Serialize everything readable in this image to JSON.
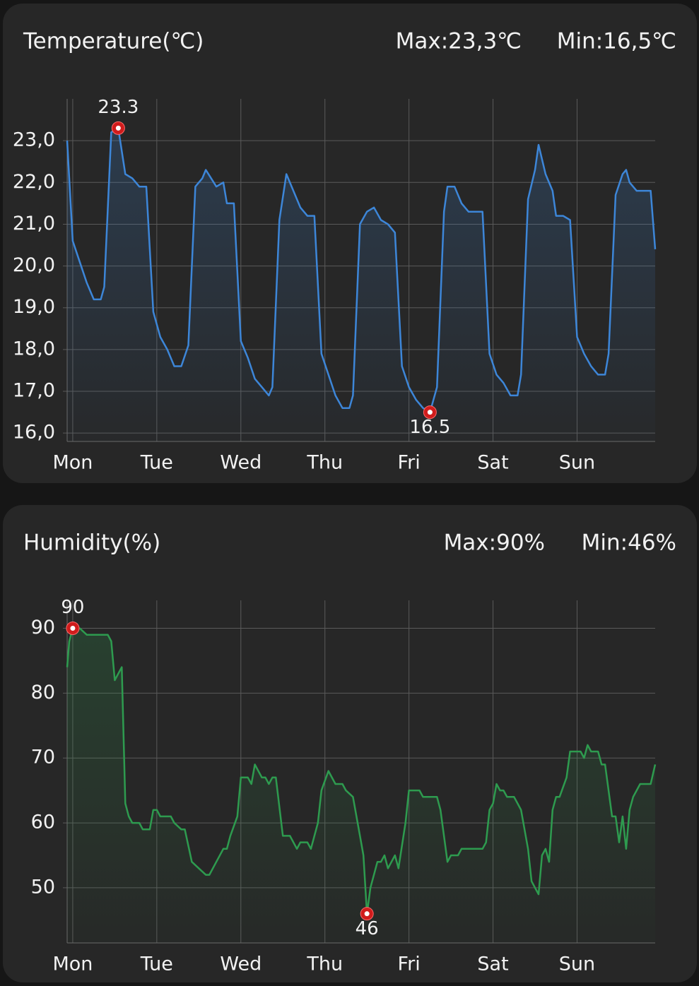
{
  "chart_data": [
    {
      "type": "line",
      "title": "Temperature(℃)",
      "max_label": "Max:23,3℃",
      "min_label": "Min:16,5℃",
      "color": "#3d86d8",
      "grid": true,
      "xlim": [
        -1.6,
        166.3
      ],
      "ylim": [
        15.8,
        24.0
      ],
      "xticks": [
        {
          "value": 0,
          "label": "Mon"
        },
        {
          "value": 24,
          "label": "Tue"
        },
        {
          "value": 48,
          "label": "Wed"
        },
        {
          "value": 72,
          "label": "Thu"
        },
        {
          "value": 96,
          "label": "Fri"
        },
        {
          "value": 120,
          "label": "Sat"
        },
        {
          "value": 144,
          "label": "Sun"
        }
      ],
      "yticks": [
        {
          "value": 16,
          "label": "16,0"
        },
        {
          "value": 17,
          "label": "17,0"
        },
        {
          "value": 18,
          "label": "18,0"
        },
        {
          "value": 19,
          "label": "19,0"
        },
        {
          "value": 20,
          "label": "20,0"
        },
        {
          "value": 21,
          "label": "21,0"
        },
        {
          "value": 22,
          "label": "22,0"
        },
        {
          "value": 23,
          "label": "23,0"
        }
      ],
      "x": [
        -1.6,
        0,
        2,
        4,
        6,
        8,
        9,
        11,
        13,
        15,
        17,
        19,
        21,
        23,
        25,
        27,
        29,
        31,
        33,
        35,
        37,
        38,
        41,
        43,
        44,
        46,
        48,
        50,
        52,
        54,
        56,
        57,
        59,
        61,
        63,
        65,
        67,
        69,
        71,
        73,
        75,
        77,
        79,
        80,
        82,
        84,
        86,
        88,
        90,
        92,
        94,
        96,
        98,
        100,
        102,
        104,
        106,
        107,
        109,
        111,
        113,
        115,
        117,
        119,
        121,
        123,
        125,
        127,
        128,
        130,
        132,
        133,
        135,
        137,
        138,
        140,
        142,
        144,
        146,
        148,
        150,
        152,
        153,
        155,
        157,
        158,
        159,
        161,
        163,
        165,
        166.3
      ],
      "values": [
        23.0,
        20.6,
        20.1,
        19.6,
        19.2,
        19.2,
        19.5,
        23.2,
        23.3,
        22.2,
        22.1,
        21.9,
        21.9,
        18.9,
        18.3,
        18.0,
        17.6,
        17.6,
        18.1,
        21.9,
        22.1,
        22.3,
        21.9,
        22.0,
        21.5,
        21.5,
        18.2,
        17.8,
        17.3,
        17.1,
        16.9,
        17.1,
        21.1,
        22.2,
        21.8,
        21.4,
        21.2,
        21.2,
        17.9,
        17.4,
        16.9,
        16.6,
        16.6,
        16.9,
        21.0,
        21.3,
        21.4,
        21.1,
        21.0,
        20.8,
        17.6,
        17.1,
        16.8,
        16.6,
        16.5,
        17.1,
        21.3,
        21.9,
        21.9,
        21.5,
        21.3,
        21.3,
        21.3,
        17.9,
        17.4,
        17.2,
        16.9,
        16.9,
        17.4,
        21.6,
        22.3,
        22.9,
        22.2,
        21.8,
        21.2,
        21.2,
        21.1,
        18.3,
        17.9,
        17.6,
        17.4,
        17.4,
        17.9,
        21.7,
        22.2,
        22.3,
        22.0,
        21.8,
        21.8,
        21.8,
        20.4
      ],
      "annotations": [
        {
          "x": 13,
          "y": 23.3,
          "label": "23.3",
          "position": "above"
        },
        {
          "x": 102,
          "y": 16.5,
          "label": "16.5",
          "position": "below"
        }
      ]
    },
    {
      "type": "line",
      "title": "Humidity(%)",
      "max_label": "Max:90%",
      "min_label": "Min:46%",
      "color": "#2e9b4f",
      "grid": true,
      "xlim": [
        -1.6,
        166.3
      ],
      "ylim": [
        41.5,
        94.3
      ],
      "xticks": [
        {
          "value": 0,
          "label": "Mon"
        },
        {
          "value": 24,
          "label": "Tue"
        },
        {
          "value": 48,
          "label": "Wed"
        },
        {
          "value": 72,
          "label": "Thu"
        },
        {
          "value": 96,
          "label": "Fri"
        },
        {
          "value": 120,
          "label": "Sat"
        },
        {
          "value": 144,
          "label": "Sun"
        }
      ],
      "yticks": [
        50,
        60,
        70,
        80,
        90
      ],
      "x": [
        -1.6,
        -1,
        0,
        2,
        4,
        6,
        8,
        10,
        11,
        12,
        13,
        14,
        15,
        16,
        17,
        19,
        20,
        22,
        23,
        24,
        25,
        28,
        29,
        31,
        32,
        34,
        36,
        38,
        39,
        41,
        43,
        44,
        45,
        47,
        48,
        50,
        51,
        52,
        54,
        55,
        56,
        57,
        58,
        60,
        62,
        64,
        65,
        67,
        68,
        70,
        71,
        73,
        75,
        77,
        78,
        80,
        82,
        83,
        84,
        85,
        87,
        88,
        89,
        90,
        91,
        92,
        93,
        95,
        96,
        99,
        100,
        104,
        105,
        107,
        108,
        110,
        111,
        117,
        118,
        119,
        120,
        121,
        122,
        123,
        124,
        126,
        127,
        128,
        130,
        131,
        132,
        133,
        134,
        135,
        136,
        137,
        138,
        139,
        141,
        142,
        145,
        146,
        147,
        148,
        150,
        151,
        152,
        154,
        155,
        156,
        157,
        158,
        159,
        160,
        162,
        164,
        165,
        166.3
      ],
      "values": [
        84,
        88,
        90,
        90,
        89,
        89,
        89,
        89,
        88,
        82,
        83,
        84,
        63,
        61,
        60,
        60,
        59,
        59,
        62,
        62,
        61,
        61,
        60,
        59,
        59,
        54,
        53,
        52,
        52,
        54,
        56,
        56,
        58,
        61,
        67,
        67,
        66,
        69,
        67,
        67,
        66,
        67,
        67,
        58,
        58,
        56,
        57,
        57,
        56,
        60,
        65,
        68,
        66,
        66,
        65,
        64,
        58,
        55,
        46,
        50,
        54,
        54,
        55,
        53,
        54,
        55,
        53,
        60,
        65,
        65,
        64,
        64,
        62,
        54,
        55,
        55,
        56,
        56,
        57,
        62,
        63,
        66,
        65,
        65,
        64,
        64,
        63,
        62,
        56,
        51,
        50,
        49,
        55,
        56,
        54,
        62,
        64,
        64,
        67,
        71,
        71,
        70,
        72,
        71,
        71,
        69,
        69,
        61,
        61,
        57,
        61,
        56,
        62,
        64,
        66,
        66,
        66,
        69
      ],
      "annotations": [
        {
          "x": 0,
          "y": 90,
          "label": "90",
          "position": "above"
        },
        {
          "x": 84,
          "y": 46,
          "label": "46",
          "position": "below"
        }
      ]
    }
  ]
}
